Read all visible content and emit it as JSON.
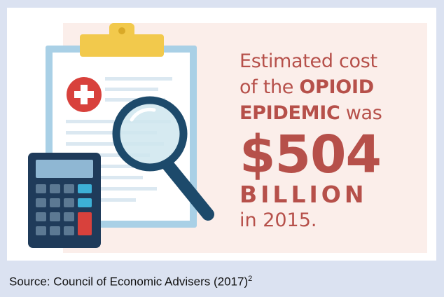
{
  "infographic": {
    "line1": "Estimated cost",
    "line2_plain": "of the ",
    "line2_bold": "OPIOID",
    "line3_bold": "EPIDEMIC",
    "line3_plain": " was",
    "amount": "$504",
    "unit": "BILLION",
    "year_line": "in 2015."
  },
  "source": {
    "text": "Source: Council of Economic Advisers (2017)",
    "footnote": "2"
  },
  "colors": {
    "page_background": "#dbe2f1",
    "panel_background": "#fbeeea",
    "headline_red": "#b6504a",
    "clipboard_clip": "#f2c94c",
    "magnifier_navy": "#1d4a6b",
    "calculator_navy": "#1f3b5a",
    "medical_cross": "#d8413c"
  },
  "icons": [
    "clipboard-icon",
    "medical-cross-icon",
    "magnifying-glass-icon",
    "calculator-icon"
  ]
}
